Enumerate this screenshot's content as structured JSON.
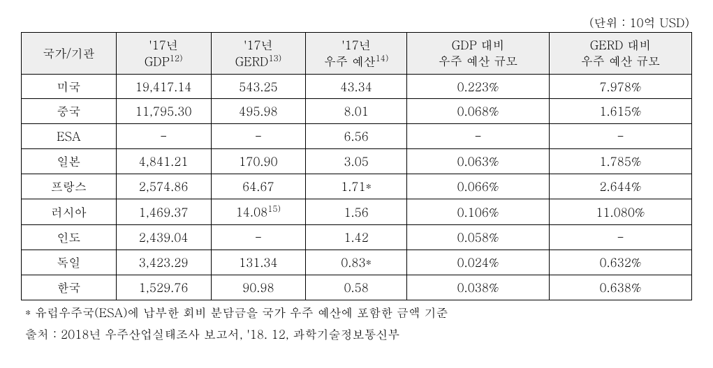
{
  "unit_label": "(단위 : 10억 USD)",
  "table": {
    "columns": [
      "국가/기관",
      "'17년\nGDP",
      "'17년\nGERD",
      "'17년\n우주 예산",
      "GDP 대비\n우주 예산 규모",
      "GERD 대비\n우주 예산 규모"
    ],
    "column_sups": [
      "",
      "12)",
      "13)",
      "14)",
      "",
      ""
    ],
    "rows": [
      [
        "미국",
        "19,417.14",
        "543.25",
        "43.34",
        "0.223%",
        "7.978%"
      ],
      [
        "중국",
        "11,795.30",
        "495.98",
        "8.01",
        "0.068%",
        "1.615%"
      ],
      [
        "ESA",
        "-",
        "-",
        "6.56",
        "-",
        "-"
      ],
      [
        "일본",
        "4,841.21",
        "170.90",
        "3.05",
        "0.063%",
        "1.785%"
      ],
      [
        "프랑스",
        "2,574.86",
        "64.67",
        "1.71*",
        "0.066%",
        "2.644%"
      ],
      [
        "러시아",
        "1,469.37",
        "14.08",
        "1.56",
        "0.106%",
        "11.080%"
      ],
      [
        "인도",
        "2,439.04",
        "-",
        "1.42",
        "0.058%",
        "-"
      ],
      [
        "독일",
        "3,423.29",
        "131.34",
        "0.83*",
        "0.024%",
        "0.632%"
      ],
      [
        "한국",
        "1,529.76",
        "90.98",
        "0.58",
        "0.038%",
        "0.638%"
      ]
    ],
    "cell_sups": {
      "5_2": "15)"
    },
    "column_widths": [
      "14%",
      "14%",
      "14%",
      "15%",
      "21.5%",
      "21.5%"
    ],
    "header_bg": "#eeeeee",
    "border_color": "#000000",
    "background_color": "#ffffff",
    "font_size_pt": 13
  },
  "footnotes": [
    "* 유럽우주국(ESA)에 납부한 회비 분담금을 국가 우주 예산에 포함한 금액 기준",
    "출처 : 2018년 우주산업실태조사 보고서, '18. 12, 과학기술정보통신부"
  ]
}
